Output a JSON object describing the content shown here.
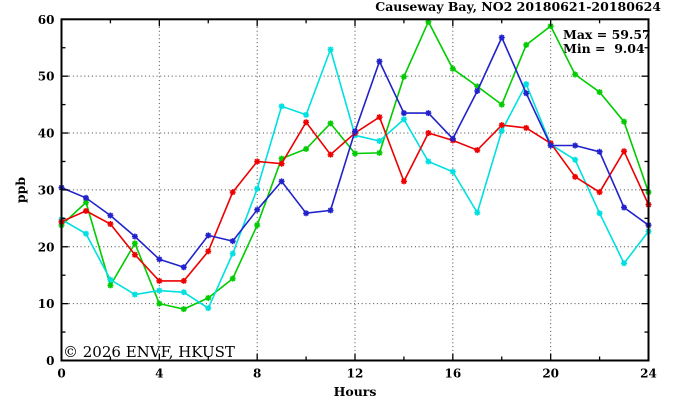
{
  "title": "Causeway Bay, NO2 20180621-20180624",
  "watermark": "© 2026 ENVF, HKUST",
  "stats": {
    "max_label": "Max = 59.57",
    "min_label": "Min =  9.04"
  },
  "chart_data": {
    "type": "line",
    "title": "Causeway Bay, NO2 20180621-20180624",
    "xlabel": "Hours",
    "ylabel": "ppb",
    "xlim": [
      0,
      24
    ],
    "ylim": [
      0,
      60
    ],
    "x_ticks_major": [
      0,
      4,
      8,
      12,
      16,
      20,
      24
    ],
    "x_ticks_minor": [
      2,
      6,
      10,
      14,
      18,
      22
    ],
    "y_ticks_major": [
      0,
      10,
      20,
      30,
      40,
      50,
      60
    ],
    "y_ticks_minor": [
      5,
      15,
      25,
      35,
      45,
      55
    ],
    "grid_x": [
      4,
      8,
      12,
      16,
      20
    ],
    "grid_y": [
      10,
      20,
      30,
      40,
      50
    ],
    "grid": true,
    "legend_position": "none",
    "marker": "star",
    "max": 59.57,
    "min": 9.04,
    "x": [
      0,
      1,
      2,
      3,
      4,
      5,
      6,
      7,
      8,
      9,
      10,
      11,
      12,
      13,
      14,
      15,
      16,
      17,
      18,
      19,
      20,
      21,
      22,
      23,
      24
    ],
    "series": [
      {
        "name": "series-green",
        "color": "#00cc00",
        "values": [
          23.8,
          27.8,
          13.2,
          20.6,
          10.0,
          9.04,
          11.0,
          14.4,
          23.8,
          35.5,
          37.2,
          41.7,
          36.4,
          36.5,
          49.9,
          59.57,
          51.3,
          48.2,
          45.0,
          55.5,
          58.8,
          50.3,
          47.2,
          42.0,
          29.6
        ]
      },
      {
        "name": "series-cyan",
        "color": "#00e0e0",
        "values": [
          24.8,
          22.3,
          14.2,
          11.6,
          12.3,
          12.0,
          9.2,
          18.8,
          30.2,
          44.7,
          43.2,
          54.7,
          39.6,
          38.6,
          42.4,
          35.0,
          33.2,
          26.0,
          40.4,
          48.6,
          38.0,
          35.3,
          25.9,
          17.1,
          22.7
        ]
      },
      {
        "name": "series-red",
        "color": "#ee0000",
        "values": [
          24.4,
          26.3,
          24.0,
          18.6,
          14.0,
          14.0,
          19.2,
          29.6,
          35.0,
          34.6,
          41.9,
          36.2,
          40.0,
          42.8,
          31.5,
          40.0,
          38.7,
          37.0,
          41.4,
          40.9,
          38.2,
          32.3,
          29.6,
          36.8,
          27.4
        ]
      },
      {
        "name": "series-blue",
        "color": "#2222cc",
        "values": [
          30.4,
          28.6,
          25.5,
          21.8,
          17.8,
          16.4,
          22.0,
          21.0,
          26.5,
          31.5,
          25.9,
          26.4,
          40.3,
          52.6,
          43.5,
          43.5,
          39.0,
          47.4,
          56.8,
          47.0,
          37.8,
          37.8,
          36.7,
          26.9,
          23.8
        ]
      }
    ]
  }
}
